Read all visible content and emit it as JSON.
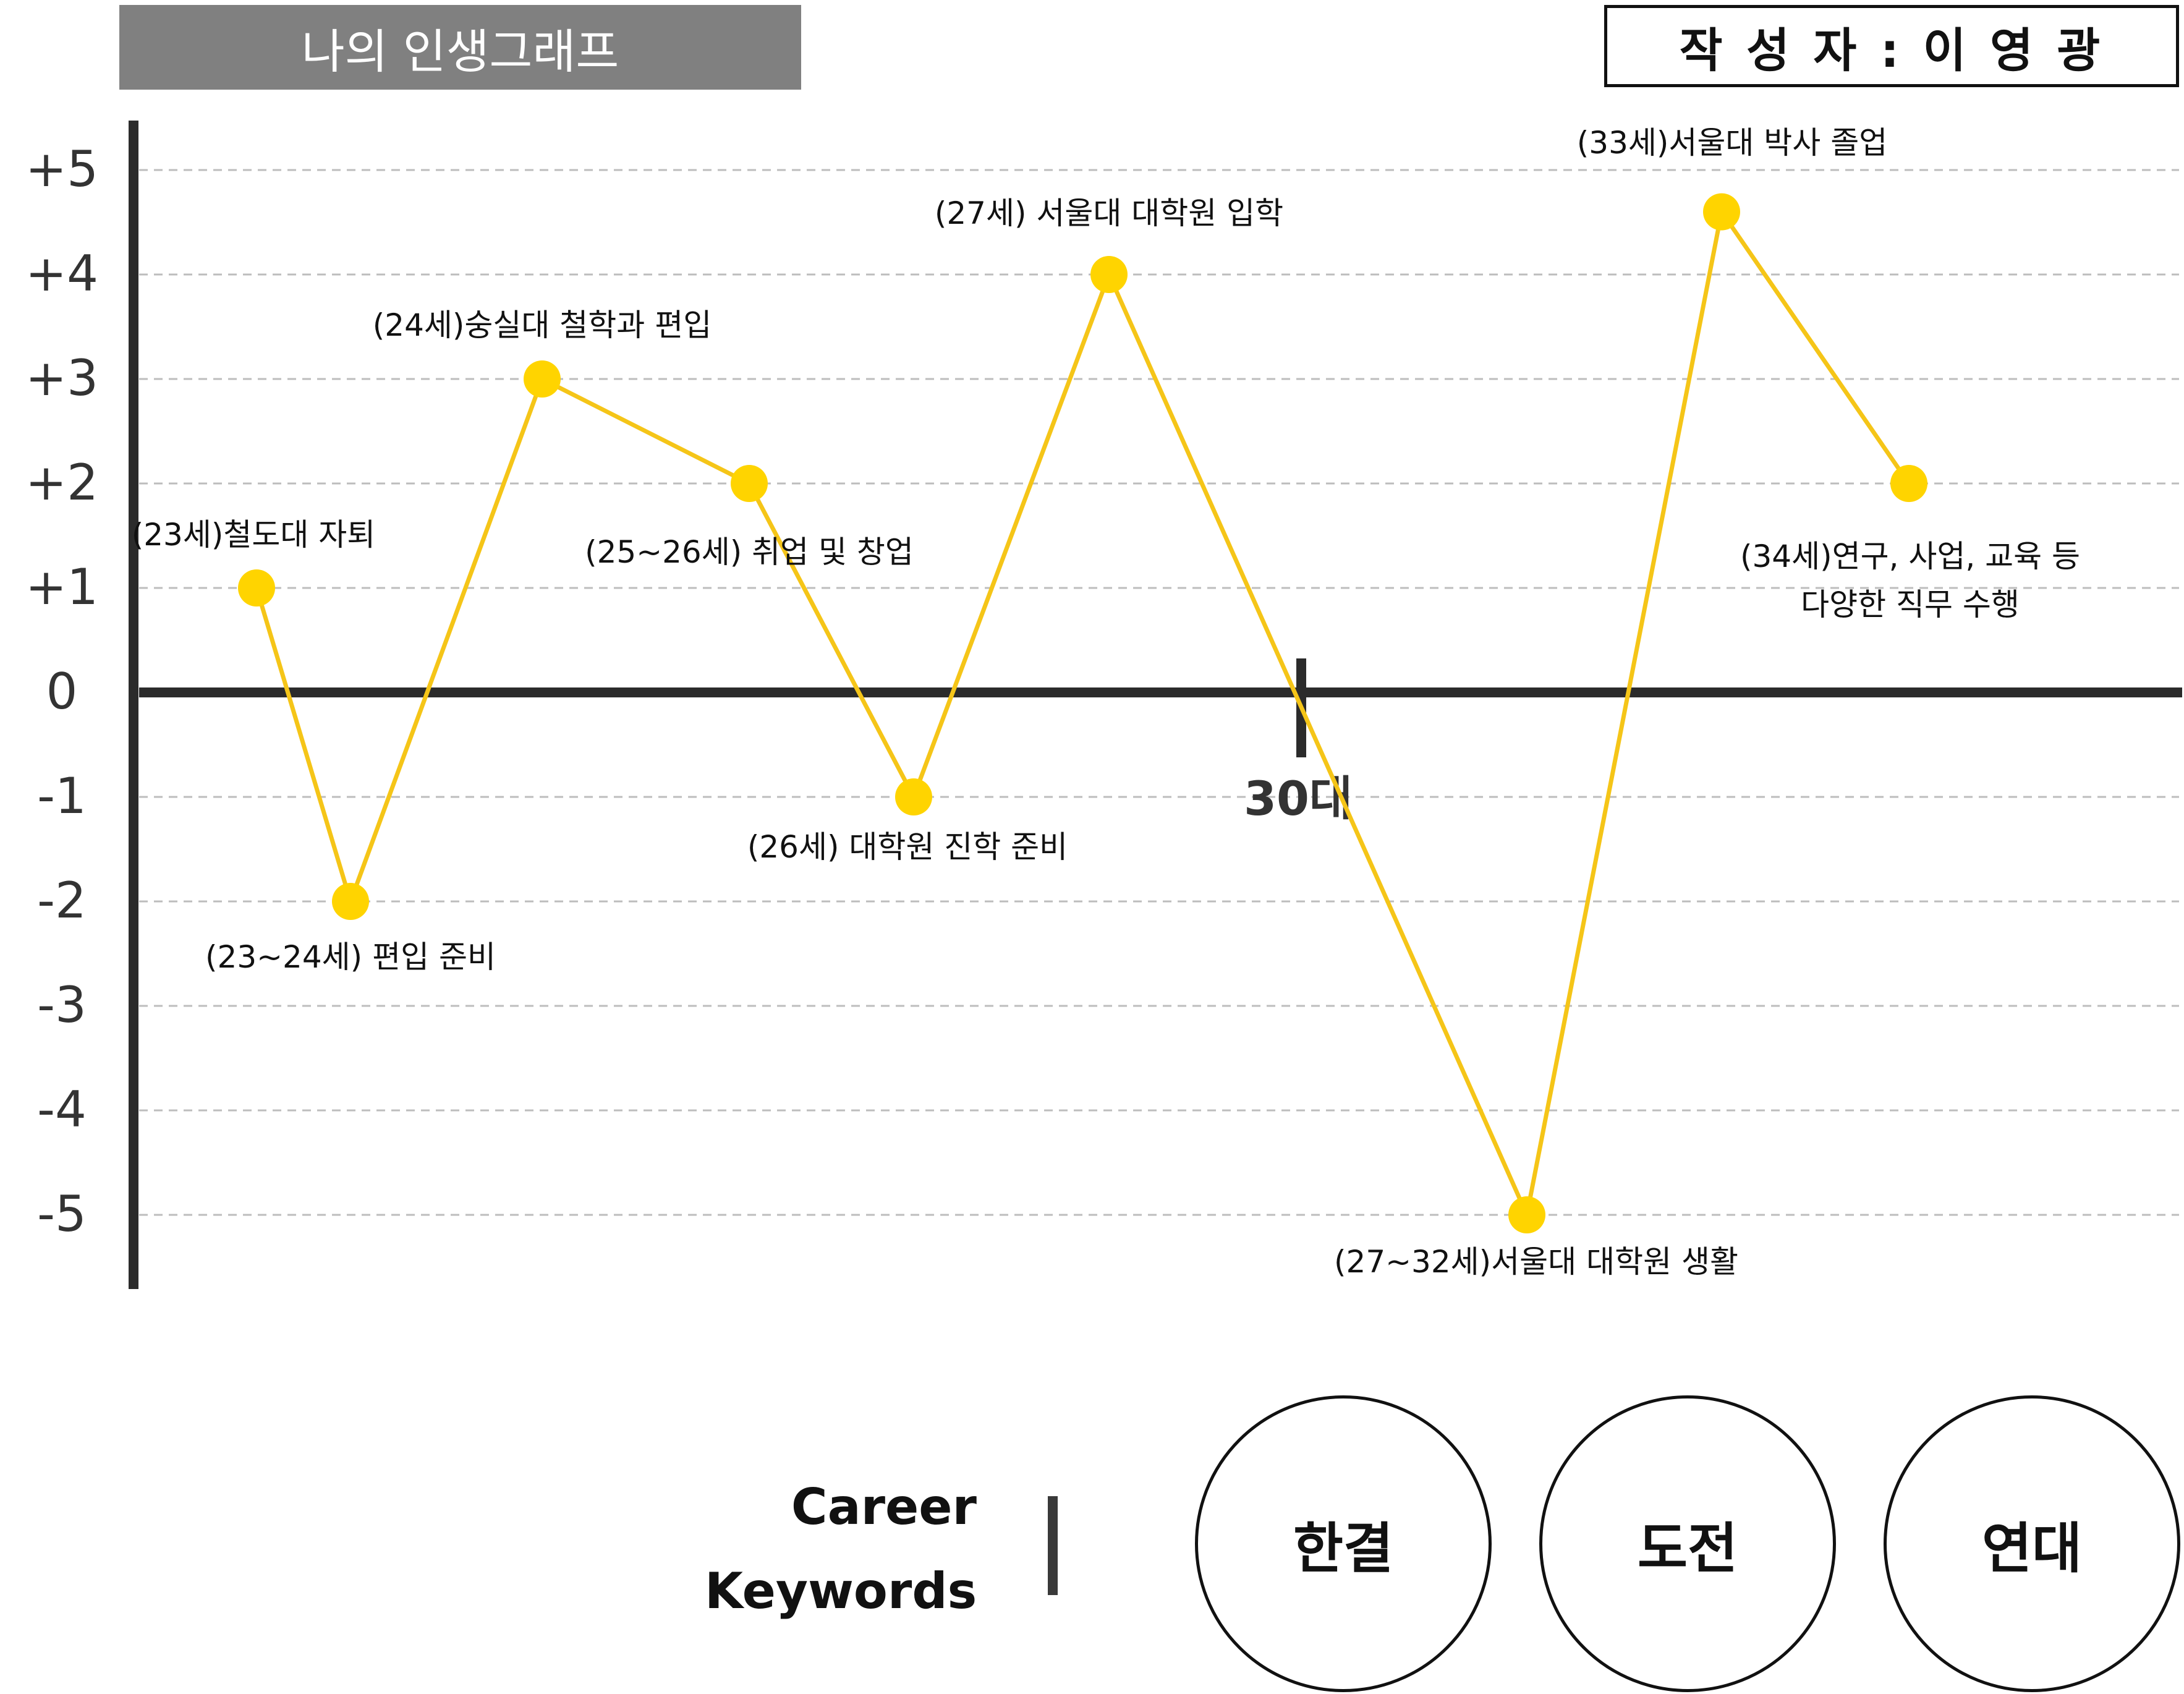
{
  "header": {
    "title": "나의 인생그래프",
    "author": "작 성 자 : 이 영 광"
  },
  "chart_data": {
    "type": "line",
    "title": "나의 인생그래프",
    "ylim": [
      -5,
      5
    ],
    "yticks": [
      "+5",
      "+4",
      "+3",
      "+2",
      "+1",
      "0",
      "-1",
      "-2",
      "-3",
      "-4",
      "-5"
    ],
    "grid": true,
    "decade_marker": "30대",
    "series": [
      {
        "color": "#F5C518",
        "points": [
          {
            "label": "(23세)철도대 자퇴",
            "y": 1
          },
          {
            "label": "(23~24세) 편입 준비",
            "y": -2
          },
          {
            "label": "(24세)숭실대 철학과 편입",
            "y": 3
          },
          {
            "label": "(25~26세) 취업 및 창업",
            "y": 2
          },
          {
            "label": "(26세) 대학원 진학 준비",
            "y": -1
          },
          {
            "label": "(27세) 서울대 대학원 입학",
            "y": 4
          },
          {
            "label": "(27~32세)서울대 대학원 생활",
            "y": -5
          },
          {
            "label": "(33세)서울대 박사 졸업",
            "y": 4.6
          },
          {
            "label": "(34세)연구, 사업, 교육 등 다양한 직무 수행",
            "y": 2
          }
        ]
      }
    ]
  },
  "keywords": {
    "title_line1": "Career",
    "title_line2": "Keywords",
    "items": [
      "한결",
      "도전",
      "연대"
    ]
  },
  "colors": {
    "line": "#F5C518",
    "marker": "#FFD400",
    "banner": "#808080",
    "axis": "#2b2b2b"
  }
}
